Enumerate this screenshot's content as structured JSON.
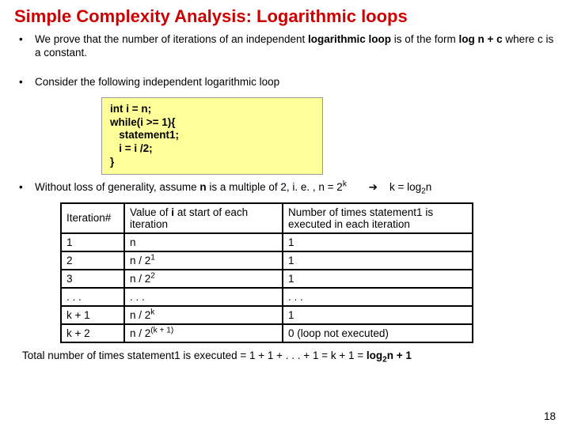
{
  "title": "Simple Complexity Analysis: Logarithmic loops",
  "bullets": {
    "b1_pre": "We prove that the number of iterations of an independent ",
    "b1_bold1": "logarithmic loop",
    "b1_mid": " is of the form ",
    "b1_bold2": "log n + c",
    "b1_post": " where c is a constant.",
    "b2": "Consider the following independent logarithmic loop",
    "b3_pre": "Without loss of generality, assume ",
    "b3_bold1": "n",
    "b3_mid": " is a multiple of 2, i. e. ,   n = 2",
    "b3_sup": "k",
    "b3_arrow": "➔",
    "b3_keq_pre": "k = log",
    "b3_keq_sub": "2",
    "b3_keq_post": "n"
  },
  "code": {
    "l1": "int i = n;",
    "l2": "while(i >= 1){",
    "l3": "   statement1;",
    "l4": "   i = i /2;",
    "l5": "}"
  },
  "table": {
    "h1": "Iteration#",
    "h2_a": "Value of ",
    "h2_b": "i",
    "h2_c": " at start of each iteration",
    "h3": "Number of times statement1 is executed in each iteration",
    "rows": [
      {
        "c1": "1",
        "c2_pre": "n",
        "c2_sup": "",
        "c3": "1"
      },
      {
        "c1": "2",
        "c2_pre": "n / 2",
        "c2_sup": "1",
        "c3": "1"
      },
      {
        "c1": "3",
        "c2_pre": "n / 2",
        "c2_sup": "2",
        "c3": "1"
      },
      {
        "c1": ". . .",
        "c2_pre": ". . .",
        "c2_sup": "",
        "c3": ". . ."
      },
      {
        "c1": "k + 1",
        "c2_pre": "n / 2",
        "c2_sup": "k",
        "c3": "1"
      },
      {
        "c1": "k + 2",
        "c2_pre": "n / 2",
        "c2_sup": "(k + 1)",
        "c3": "0 (loop not executed)"
      }
    ]
  },
  "summary": {
    "pre": "Total number of times statement1 is executed = 1 + 1 + . . . + 1 =  k + 1  = ",
    "bold_a": "log",
    "bold_sub": "2",
    "bold_b": "n + 1"
  },
  "pagenum": "18",
  "colors": {
    "title": "#cc0000",
    "code_bg": "#ffff99",
    "border": "#000000",
    "bg": "#ffffff"
  }
}
